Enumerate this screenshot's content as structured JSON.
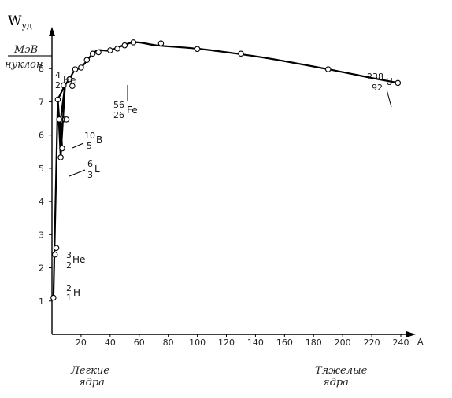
{
  "chart_data": {
    "type": "line",
    "title": "",
    "ylabel_symbol": "W",
    "ylabel_subscript": "уд",
    "yunit_numerator": "МэВ",
    "yunit_denominator": "нуклон",
    "xlabel": "A",
    "xlim": [
      0,
      240
    ],
    "ylim": [
      0,
      9
    ],
    "x_ticks": [
      20,
      40,
      60,
      80,
      100,
      120,
      140,
      160,
      180,
      200,
      220,
      240
    ],
    "y_ticks": [
      1,
      2,
      3,
      4,
      5,
      6,
      7,
      8
    ],
    "grid": false,
    "curve": {
      "x": [
        4,
        9,
        12,
        16,
        20,
        30,
        40,
        56,
        72,
        100,
        127,
        150,
        190,
        220,
        238
      ],
      "y": [
        7.07,
        7.5,
        7.68,
        7.98,
        8.03,
        8.52,
        8.55,
        8.79,
        8.7,
        8.6,
        8.45,
        8.3,
        7.98,
        7.72,
        7.57
      ]
    },
    "light_lines": {
      "x": [
        1,
        4,
        6,
        9,
        6,
        7,
        6,
        5,
        4
      ],
      "y": [
        1.1,
        7.07,
        5.33,
        7.5,
        6.47,
        5.6,
        5.6,
        6.47,
        7.07
      ]
    },
    "points": {
      "x": [
        1,
        2,
        3,
        4,
        5,
        6,
        7,
        8,
        9,
        10,
        12,
        14,
        16,
        20,
        24,
        28,
        32,
        40,
        45,
        50,
        56,
        75,
        100,
        130,
        190,
        238
      ],
      "y": [
        1.1,
        2.4,
        2.6,
        7.07,
        6.47,
        5.33,
        5.6,
        7.5,
        6.47,
        6.47,
        7.68,
        7.48,
        7.98,
        8.03,
        8.26,
        8.45,
        8.49,
        8.55,
        8.6,
        8.7,
        8.79,
        8.76,
        8.59,
        8.45,
        7.98,
        7.57
      ]
    },
    "annotations": [
      {
        "mass": "2",
        "charge": "1",
        "symbol": "H"
      },
      {
        "mass": "3",
        "charge": "2",
        "symbol": "He"
      },
      {
        "mass": "4",
        "charge": "2",
        "symbol": "He"
      },
      {
        "mass": "6",
        "charge": "3",
        "symbol": "L"
      },
      {
        "mass": "10",
        "charge": "5",
        "symbol": "B"
      },
      {
        "mass": "56",
        "charge": "26",
        "symbol": "Fe"
      },
      {
        "mass": "238",
        "charge": "92",
        "symbol": "U"
      }
    ],
    "region_labels": {
      "light": [
        "Легкие",
        "ядра"
      ],
      "heavy": [
        "Тяжелые",
        "ядра"
      ]
    }
  }
}
